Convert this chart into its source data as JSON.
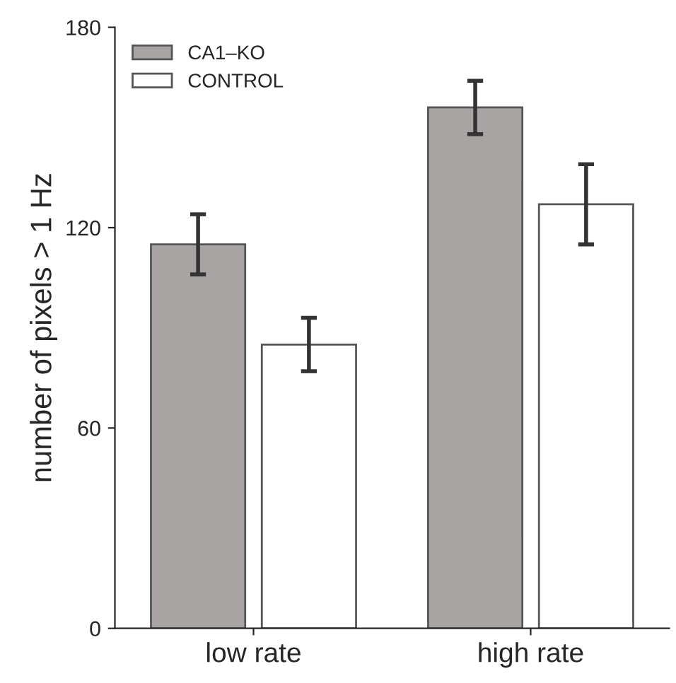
{
  "chart_data": {
    "type": "bar",
    "ylabel": "number of pixels > 1 Hz",
    "categories": [
      "low rate",
      "high rate"
    ],
    "series": [
      {
        "name": "CA1–KO",
        "color": "#a8a4a4",
        "values": [
          115,
          156
        ],
        "errors": [
          9,
          8
        ]
      },
      {
        "name": "CONTROL",
        "color": "#ffffff",
        "values": [
          85,
          127
        ],
        "errors": [
          8,
          12
        ]
      }
    ],
    "ylim": [
      0,
      180
    ],
    "yticks": [
      0,
      60,
      120,
      180
    ],
    "legend": "top left",
    "grid": false
  }
}
